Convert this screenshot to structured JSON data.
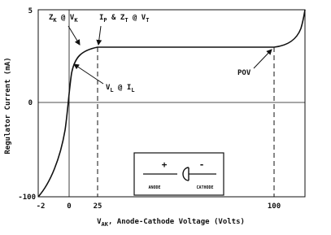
{
  "axes": {
    "y_label": "Regulator Current (mA)",
    "x_label": [
      "V",
      "AK",
      ", Anode-Cathode Voltage (Volts)"
    ],
    "y_tick_labels": [
      "5",
      "0",
      "-100"
    ],
    "x_tick_labels": [
      "-2",
      "0",
      "25",
      "100"
    ]
  },
  "annotations": {
    "zk_vk": [
      "Z",
      "K",
      " @ V",
      "K"
    ],
    "ip_zt_vt": [
      "I",
      "P",
      " & Z",
      "T",
      " @ V",
      "T"
    ],
    "vl_il": [
      "V",
      "L",
      " @ I",
      "L"
    ],
    "pov": "POV"
  },
  "inset": {
    "plus": "+",
    "minus": "-",
    "anode": "ANODE",
    "cathode": "CATHODE"
  }
}
